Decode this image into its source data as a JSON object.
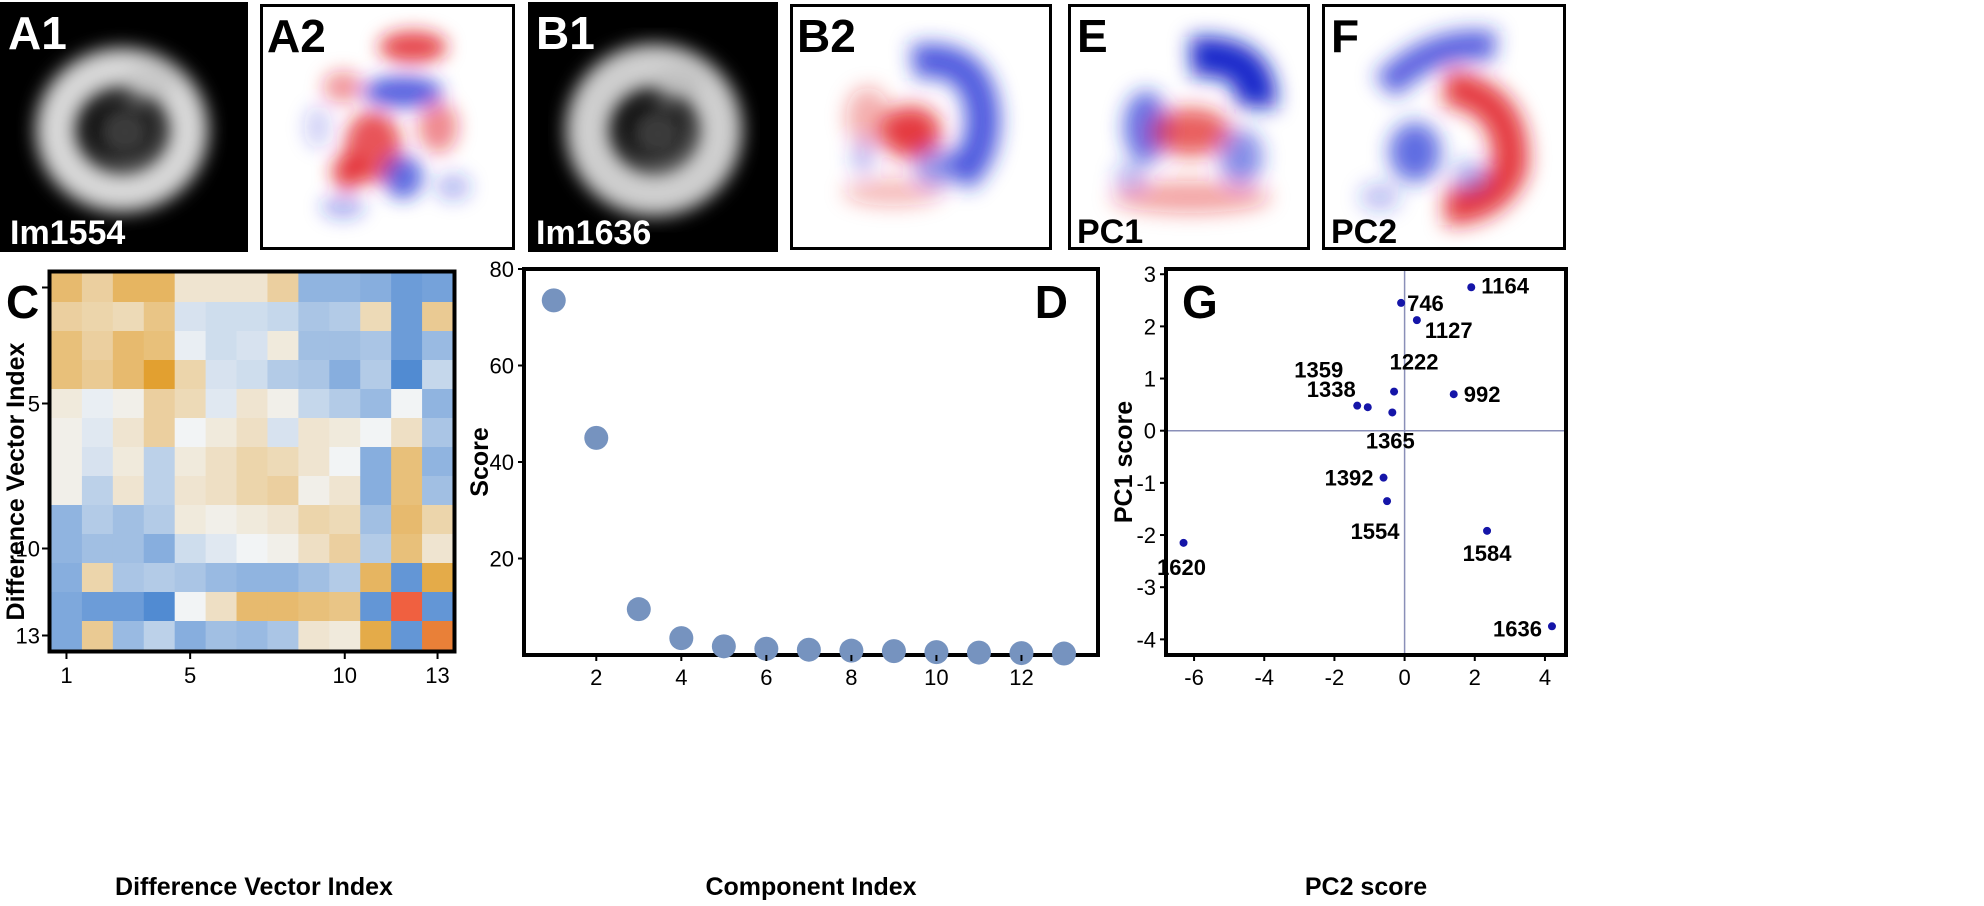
{
  "image_panels": [
    {
      "id": "A1",
      "label": "A1",
      "caption": "Im1554",
      "kind": "grayscale"
    },
    {
      "id": "A2",
      "label": "A2",
      "caption": "",
      "kind": "difference-map"
    },
    {
      "id": "B1",
      "label": "B1",
      "caption": "Im1636",
      "kind": "grayscale"
    },
    {
      "id": "B2",
      "label": "B2",
      "caption": "",
      "kind": "difference-map"
    },
    {
      "id": "E",
      "label": "E",
      "caption": "PC1",
      "kind": "difference-map"
    },
    {
      "id": "F",
      "label": "F",
      "caption": "PC2",
      "kind": "difference-map"
    }
  ],
  "colors": {
    "positive": "#e0191f",
    "negative": "#1f2fd6",
    "scree_marker": "#7693bf",
    "score_marker": "#1515a8",
    "heat_low": "#3f7fce",
    "heat_mid": "#f2f4f5",
    "heat_high": "#e2a030",
    "heat_extreme": "#f06040"
  },
  "chart_data": [
    {
      "panel": "C",
      "type": "heatmap",
      "label": "C",
      "xlabel": "Difference Vector Index",
      "ylabel": "Difference Vector Index",
      "x_ticks": [
        "1",
        "5",
        "10",
        "13"
      ],
      "y_ticks": [
        "5",
        "10",
        "13"
      ],
      "size": 13,
      "legend": "none",
      "values": [
        [
          0.55,
          0.35,
          0.6,
          0.6,
          0.15,
          0.15,
          0.15,
          0.35,
          -0.55,
          -0.55,
          -0.6,
          -0.75,
          -0.7
        ],
        [
          0.35,
          0.3,
          0.25,
          0.45,
          -0.15,
          -0.2,
          -0.2,
          -0.25,
          -0.4,
          -0.35,
          0.25,
          -0.75,
          0.4
        ],
        [
          0.5,
          0.35,
          0.55,
          0.5,
          -0.05,
          -0.2,
          -0.15,
          0.1,
          -0.45,
          -0.45,
          -0.4,
          -0.75,
          -0.5
        ],
        [
          0.5,
          0.4,
          0.55,
          0.8,
          0.3,
          -0.15,
          -0.2,
          -0.35,
          -0.4,
          -0.6,
          -0.35,
          -0.9,
          -0.25
        ],
        [
          0.1,
          -0.05,
          0.05,
          0.35,
          0.25,
          -0.1,
          0.15,
          0.05,
          -0.25,
          -0.35,
          -0.5,
          0.0,
          -0.55
        ],
        [
          0.05,
          -0.1,
          0.15,
          0.35,
          0.0,
          0.1,
          0.2,
          -0.15,
          0.15,
          0.1,
          0.0,
          0.2,
          -0.4
        ],
        [
          0.05,
          -0.15,
          0.1,
          -0.3,
          0.1,
          0.2,
          0.3,
          0.25,
          0.15,
          0.0,
          -0.6,
          0.5,
          -0.55
        ],
        [
          0.05,
          -0.3,
          0.15,
          -0.3,
          0.15,
          0.2,
          0.3,
          0.35,
          0.05,
          0.15,
          -0.6,
          0.5,
          -0.45
        ],
        [
          -0.55,
          -0.35,
          -0.45,
          -0.35,
          0.1,
          0.05,
          0.1,
          0.15,
          0.3,
          0.25,
          -0.45,
          0.55,
          0.3
        ],
        [
          -0.55,
          -0.45,
          -0.45,
          -0.6,
          -0.2,
          -0.1,
          0.0,
          0.05,
          0.2,
          0.35,
          -0.35,
          0.5,
          0.15
        ],
        [
          -0.6,
          0.3,
          -0.4,
          -0.35,
          -0.4,
          -0.5,
          -0.55,
          -0.55,
          -0.45,
          -0.35,
          0.6,
          -0.8,
          0.7
        ],
        [
          -0.65,
          -0.75,
          -0.75,
          -0.9,
          0.0,
          0.2,
          0.55,
          0.55,
          0.5,
          0.45,
          -0.8,
          1.0,
          -0.8
        ],
        [
          -0.65,
          0.4,
          -0.5,
          -0.3,
          -0.6,
          -0.45,
          -0.5,
          -0.4,
          0.15,
          0.1,
          0.7,
          -0.8,
          0.9
        ]
      ]
    },
    {
      "panel": "D",
      "type": "scatter",
      "label": "D",
      "xlabel": "Component Index",
      "ylabel": "Score",
      "x_ticks": [
        2,
        4,
        6,
        8,
        10,
        12
      ],
      "y_ticks": [
        20,
        40,
        60,
        80
      ],
      "xlim": [
        0.3,
        13.8
      ],
      "ylim": [
        0,
        80
      ],
      "grid": false,
      "legend": "none",
      "x": [
        1,
        2,
        3,
        4,
        5,
        6,
        7,
        8,
        9,
        10,
        11,
        12,
        13
      ],
      "y": [
        73.5,
        45,
        9.5,
        3.5,
        1.8,
        1.3,
        1.1,
        0.9,
        0.8,
        0.6,
        0.5,
        0.4,
        0.3
      ]
    },
    {
      "panel": "G",
      "type": "scatter",
      "label": "G",
      "xlabel": "PC2 score",
      "ylabel": "PC1 score",
      "x_ticks": [
        -6,
        -4,
        -2,
        0,
        2,
        4
      ],
      "y_ticks": [
        3,
        2,
        1,
        0,
        -1,
        -2,
        -3,
        -4
      ],
      "xlim": [
        -6.8,
        4.6
      ],
      "ylim": [
        -4.3,
        3.1
      ],
      "grid": false,
      "legend": "none",
      "points": [
        {
          "name": "1164",
          "x": 1.9,
          "y": 2.75
        },
        {
          "name": "746",
          "x": -0.1,
          "y": 2.45
        },
        {
          "name": "1127",
          "x": 0.35,
          "y": 2.12
        },
        {
          "name": "1359",
          "x": -1.35,
          "y": 0.48
        },
        {
          "name": "1338",
          "x": -1.05,
          "y": 0.45
        },
        {
          "name": "1222",
          "x": -0.3,
          "y": 0.75
        },
        {
          "name": "992",
          "x": 1.4,
          "y": 0.7
        },
        {
          "name": "1365",
          "x": -0.35,
          "y": 0.35
        },
        {
          "name": "1392",
          "x": -0.6,
          "y": -0.9
        },
        {
          "name": "1554",
          "x": -0.5,
          "y": -1.35
        },
        {
          "name": "1620",
          "x": -6.3,
          "y": -2.15
        },
        {
          "name": "1584",
          "x": 2.35,
          "y": -1.92
        },
        {
          "name": "1636",
          "x": 4.2,
          "y": -3.75
        }
      ]
    }
  ]
}
